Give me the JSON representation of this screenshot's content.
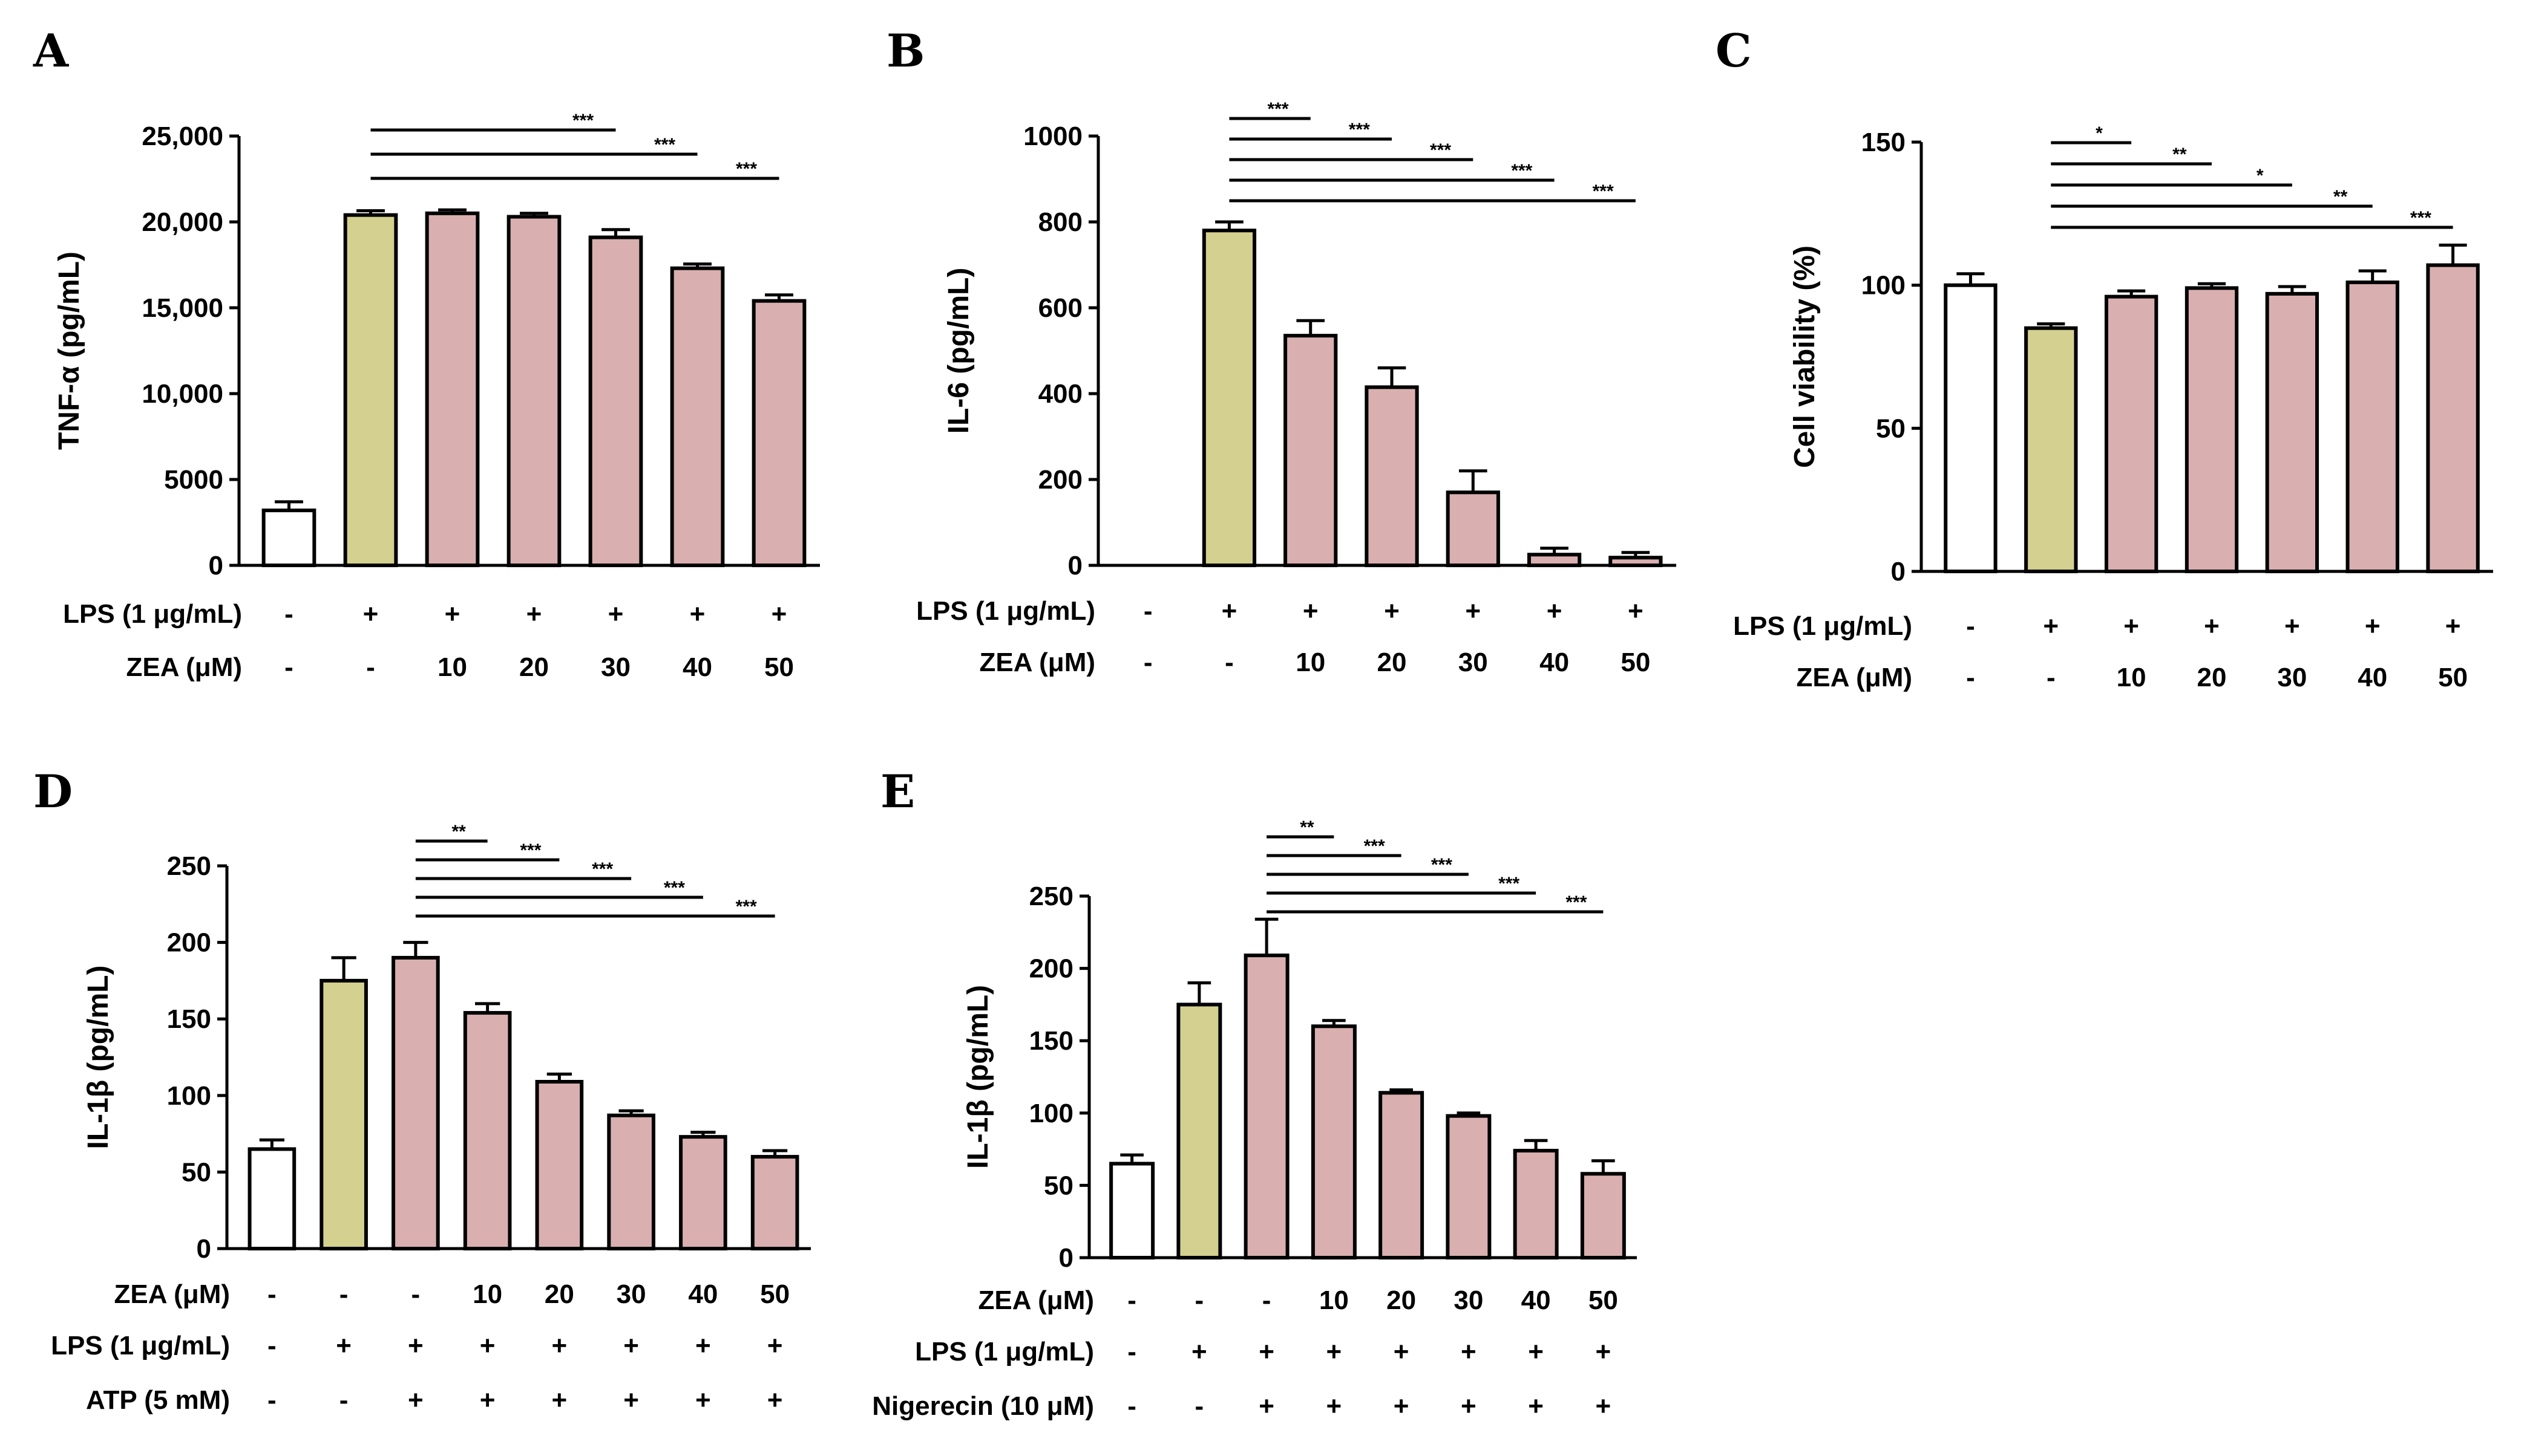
{
  "colors": {
    "control": "#ffffff",
    "lps": "#d4d08f",
    "zea": "#d9afaf",
    "line": "#000000"
  },
  "chart_data": [
    {
      "panel": "A",
      "type": "bar",
      "ylabel": "TNF-α (pg/mL)",
      "ylim": [
        0,
        25000
      ],
      "yticks": [
        0,
        5000,
        10000,
        15000,
        20000,
        25000
      ],
      "ytick_labels": [
        "0",
        "5000",
        "10,000",
        "15,000",
        "20,000",
        "25,000"
      ],
      "values": [
        3200,
        20400,
        20500,
        20300,
        19100,
        17300,
        15400
      ],
      "errors": [
        500,
        250,
        200,
        200,
        450,
        250,
        350
      ],
      "colors": [
        "control",
        "lps",
        "zea",
        "zea",
        "zea",
        "zea",
        "zea"
      ],
      "conditions": [
        {
          "name": "LPS (1 μg/mL)",
          "values": [
            "-",
            "+",
            "+",
            "+",
            "+",
            "+",
            "+"
          ]
        },
        {
          "name": "ZEA (μM)",
          "values": [
            "-",
            "-",
            "10",
            "20",
            "30",
            "40",
            "50"
          ]
        }
      ],
      "significance": [
        {
          "from": 1,
          "to": 4,
          "label": "***"
        },
        {
          "from": 1,
          "to": 5,
          "label": "***"
        },
        {
          "from": 1,
          "to": 6,
          "label": "***"
        }
      ]
    },
    {
      "panel": "B",
      "type": "bar",
      "ylabel": "IL-6 (pg/mL)",
      "ylim": [
        0,
        1000
      ],
      "yticks": [
        0,
        200,
        400,
        600,
        800,
        1000
      ],
      "ytick_labels": [
        "0",
        "200",
        "400",
        "600",
        "800",
        "1000"
      ],
      "values": [
        0,
        780,
        535,
        415,
        170,
        25,
        18
      ],
      "errors": [
        0,
        20,
        35,
        45,
        50,
        15,
        12
      ],
      "colors": [
        "control",
        "lps",
        "zea",
        "zea",
        "zea",
        "zea",
        "zea"
      ],
      "conditions": [
        {
          "name": "LPS (1 μg/mL)",
          "values": [
            "-",
            "+",
            "+",
            "+",
            "+",
            "+",
            "+"
          ]
        },
        {
          "name": "ZEA (μM)",
          "values": [
            "-",
            "-",
            "10",
            "20",
            "30",
            "40",
            "50"
          ]
        }
      ],
      "significance": [
        {
          "from": 1,
          "to": 2,
          "label": "***"
        },
        {
          "from": 1,
          "to": 3,
          "label": "***"
        },
        {
          "from": 1,
          "to": 4,
          "label": "***"
        },
        {
          "from": 1,
          "to": 5,
          "label": "***"
        },
        {
          "from": 1,
          "to": 6,
          "label": "***"
        }
      ]
    },
    {
      "panel": "C",
      "type": "bar",
      "ylabel": "Cell viability (%)",
      "ylim": [
        0,
        150
      ],
      "yticks": [
        0,
        50,
        100,
        150
      ],
      "ytick_labels": [
        "0",
        "50",
        "100",
        "150"
      ],
      "values": [
        100,
        85,
        96,
        99,
        97,
        101,
        107
      ],
      "errors": [
        4,
        1.5,
        2,
        1.5,
        2.5,
        4,
        7
      ],
      "colors": [
        "control",
        "lps",
        "zea",
        "zea",
        "zea",
        "zea",
        "zea"
      ],
      "conditions": [
        {
          "name": "LPS (1 μg/mL)",
          "values": [
            "-",
            "+",
            "+",
            "+",
            "+",
            "+",
            "+"
          ]
        },
        {
          "name": "ZEA (μM)",
          "values": [
            "-",
            "-",
            "10",
            "20",
            "30",
            "40",
            "50"
          ]
        }
      ],
      "significance": [
        {
          "from": 1,
          "to": 2,
          "label": "*"
        },
        {
          "from": 1,
          "to": 3,
          "label": "**"
        },
        {
          "from": 1,
          "to": 4,
          "label": "*"
        },
        {
          "from": 1,
          "to": 5,
          "label": "**"
        },
        {
          "from": 1,
          "to": 6,
          "label": "***"
        }
      ]
    },
    {
      "panel": "D",
      "type": "bar",
      "ylabel": "IL-1β (pg/mL)",
      "ylim": [
        0,
        250
      ],
      "yticks": [
        0,
        50,
        100,
        150,
        200,
        250
      ],
      "ytick_labels": [
        "0",
        "50",
        "100",
        "150",
        "200",
        "250"
      ],
      "values": [
        65,
        175,
        190,
        154,
        109,
        87,
        73,
        60
      ],
      "errors": [
        6,
        15,
        10,
        6,
        5,
        3,
        3,
        4
      ],
      "colors": [
        "control",
        "lps",
        "zea",
        "zea",
        "zea",
        "zea",
        "zea",
        "zea"
      ],
      "conditions": [
        {
          "name": "ZEA (μM)",
          "values": [
            "-",
            "-",
            "-",
            "10",
            "20",
            "30",
            "40",
            "50"
          ]
        },
        {
          "name": "LPS (1 μg/mL)",
          "values": [
            "-",
            "+",
            "+",
            "+",
            "+",
            "+",
            "+",
            "+"
          ]
        },
        {
          "name": "ATP (5 mM)",
          "values": [
            "-",
            "-",
            "+",
            "+",
            "+",
            "+",
            "+",
            "+"
          ]
        }
      ],
      "significance": [
        {
          "from": 2,
          "to": 3,
          "label": "**"
        },
        {
          "from": 2,
          "to": 4,
          "label": "***"
        },
        {
          "from": 2,
          "to": 5,
          "label": "***"
        },
        {
          "from": 2,
          "to": 6,
          "label": "***"
        },
        {
          "from": 2,
          "to": 7,
          "label": "***"
        }
      ]
    },
    {
      "panel": "E",
      "type": "bar",
      "ylabel": "IL-1β (pg/mL)",
      "ylim": [
        0,
        250
      ],
      "yticks": [
        0,
        50,
        100,
        150,
        200,
        250
      ],
      "ytick_labels": [
        "0",
        "50",
        "100",
        "150",
        "200",
        "250"
      ],
      "values": [
        65,
        175,
        209,
        160,
        114,
        98,
        74,
        58
      ],
      "errors": [
        6,
        15,
        25,
        4,
        2,
        2,
        7,
        9
      ],
      "colors": [
        "control",
        "lps",
        "zea",
        "zea",
        "zea",
        "zea",
        "zea",
        "zea"
      ],
      "conditions": [
        {
          "name": "ZEA (μM)",
          "values": [
            "-",
            "-",
            "-",
            "10",
            "20",
            "30",
            "40",
            "50"
          ]
        },
        {
          "name": "LPS (1 μg/mL)",
          "values": [
            "-",
            "+",
            "+",
            "+",
            "+",
            "+",
            "+",
            "+"
          ]
        },
        {
          "name": "Nigerecin (10 μM)",
          "values": [
            "-",
            "-",
            "+",
            "+",
            "+",
            "+",
            "+",
            "+"
          ]
        }
      ],
      "significance": [
        {
          "from": 2,
          "to": 3,
          "label": "**"
        },
        {
          "from": 2,
          "to": 4,
          "label": "***"
        },
        {
          "from": 2,
          "to": 5,
          "label": "***"
        },
        {
          "from": 2,
          "to": 6,
          "label": "***"
        },
        {
          "from": 2,
          "to": 7,
          "label": "***"
        }
      ]
    }
  ]
}
